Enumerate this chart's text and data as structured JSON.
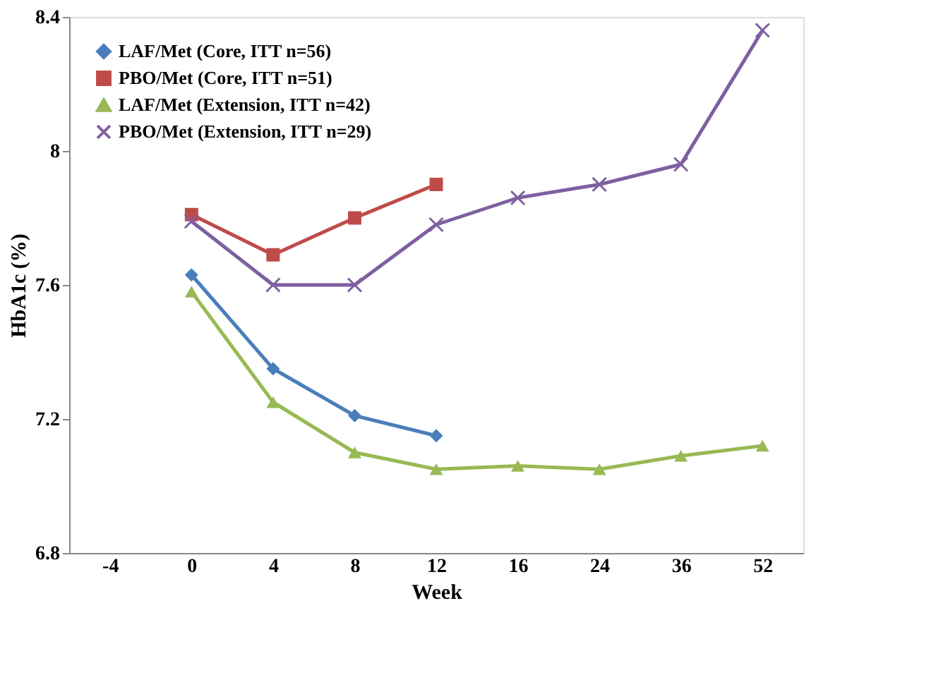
{
  "chart_data": {
    "type": "line",
    "xlabel": "Week",
    "ylabel": "HbA1c (%)",
    "categories": [
      "-4",
      "0",
      "4",
      "8",
      "12",
      "16",
      "24",
      "36",
      "52"
    ],
    "series": [
      {
        "name": "LAF/Met (Core, ITT n=56)",
        "color": "#4a7ebb",
        "marker": "diamond",
        "values": [
          null,
          7.63,
          7.35,
          7.21,
          7.15,
          null,
          null,
          null,
          null
        ]
      },
      {
        "name": "PBO/Met (Core, ITT n=51)",
        "color": "#be4b48",
        "marker": "square",
        "values": [
          null,
          7.81,
          7.69,
          7.8,
          7.9,
          null,
          null,
          null,
          null
        ]
      },
      {
        "name": "LAF/Met (Extension, ITT n=42)",
        "color": "#98b954",
        "marker": "triangle",
        "values": [
          null,
          7.58,
          7.25,
          7.1,
          7.05,
          7.06,
          7.05,
          7.09,
          7.12
        ]
      },
      {
        "name": "PBO/Met (Extension, ITT n=29)",
        "color": "#7d60a0",
        "marker": "cross",
        "values": [
          null,
          7.79,
          7.6,
          7.6,
          7.78,
          7.86,
          7.9,
          7.96,
          8.36
        ]
      }
    ],
    "ylim": [
      6.8,
      8.4
    ],
    "yticks": [
      6.8,
      7.2,
      7.6,
      8,
      8.4
    ],
    "grid": false,
    "legend": "top left",
    "line_style": "solid"
  }
}
